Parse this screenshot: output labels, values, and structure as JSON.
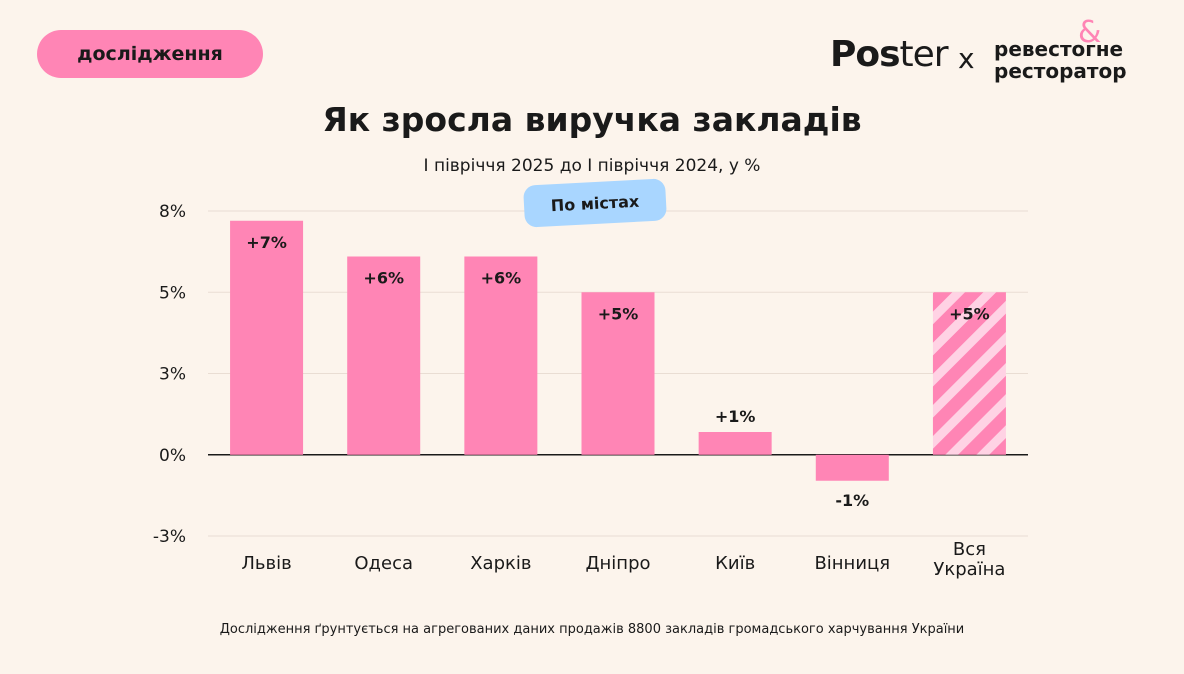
{
  "badge": {
    "label": "дослідження"
  },
  "logos": {
    "poster_bold": "Pos",
    "poster_light": "ter",
    "separator": "x",
    "partner_line1": "ревестогне",
    "partner_line2": "ресторатор",
    "partner_amp": "&"
  },
  "filter_chip": {
    "label": "По містах"
  },
  "footnote": "Дослідження ґрунтується на агрегованих даних продажів 8800 закладів громадського харчування України",
  "colors": {
    "bar": "#ff85b5",
    "stripe_light": "#ffd2e4",
    "axis": "#1a1a1a",
    "grid": "#e9ddd3",
    "chip": "#a9d6ff"
  },
  "chart_data": {
    "type": "bar",
    "title": "Як зросла виручка закладів",
    "subtitle": "І півріччя 2025 до І півріччя 2024, у %",
    "categories": [
      "Львів",
      "Одеса",
      "Харків",
      "Дніпро",
      "Київ",
      "Вінниця",
      "Вся Україна"
    ],
    "category_lines": [
      [
        "Львів"
      ],
      [
        "Одеса"
      ],
      [
        "Харків"
      ],
      [
        "Дніпро"
      ],
      [
        "Київ"
      ],
      [
        "Вінниця"
      ],
      [
        "Вся",
        "Україна"
      ]
    ],
    "values": [
      7.2,
      6.1,
      6.1,
      5.0,
      0.7,
      -0.8,
      5.0
    ],
    "data_labels": [
      "+7%",
      "+6%",
      "+6%",
      "+5%",
      "+1%",
      "-1%",
      "+5%"
    ],
    "highlight": [
      false,
      false,
      false,
      false,
      false,
      false,
      true
    ],
    "ylim": [
      -3,
      7.5
    ],
    "yticks": [
      -2.5,
      0,
      2.5,
      5,
      7.5
    ],
    "ytick_labels": [
      "-3%",
      "0%",
      "3%",
      "5%",
      "8%"
    ],
    "grid": true,
    "xlabel": "",
    "ylabel": ""
  }
}
